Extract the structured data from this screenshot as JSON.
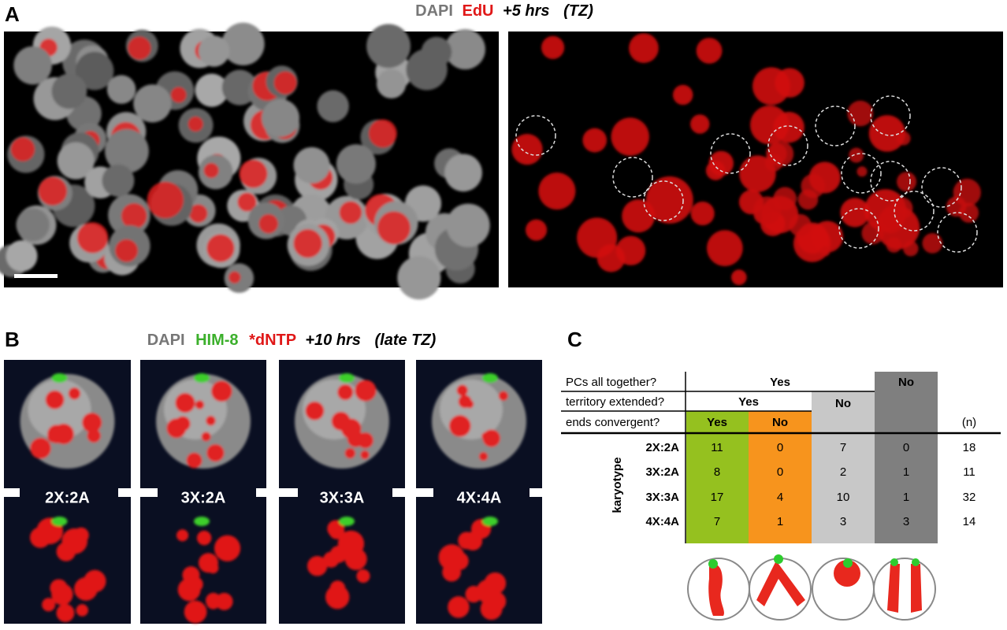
{
  "panel_a": {
    "label": "A",
    "title": [
      "DAPI",
      "EdU",
      "+5 hrs",
      "(TZ)"
    ]
  },
  "panel_b": {
    "label": "B",
    "title": [
      "DAPI",
      "HIM-8",
      "*dNTP",
      "+10 hrs",
      "(late TZ)"
    ],
    "karyotypes": [
      "2X:2A",
      "3X:2A",
      "3X:3A",
      "4X:4A"
    ]
  },
  "panel_c": {
    "label": "C",
    "questions": [
      "PCs all together?",
      "territory extended?",
      "ends convergent?"
    ],
    "together": [
      "Yes",
      "No"
    ],
    "extended": [
      "Yes",
      "No"
    ],
    "convergent": [
      "Yes",
      "No"
    ],
    "n_header": "(n)",
    "row_axis": "karyotype",
    "rows": [
      {
        "label": "2X:2A",
        "values": [
          11,
          0,
          7,
          0
        ],
        "n": 18
      },
      {
        "label": "3X:2A",
        "values": [
          8,
          0,
          2,
          1
        ],
        "n": 11
      },
      {
        "label": "3X:3A",
        "values": [
          17,
          4,
          10,
          1
        ],
        "n": 32
      },
      {
        "label": "4X:4A",
        "values": [
          7,
          1,
          3,
          3
        ],
        "n": 14
      }
    ]
  }
}
